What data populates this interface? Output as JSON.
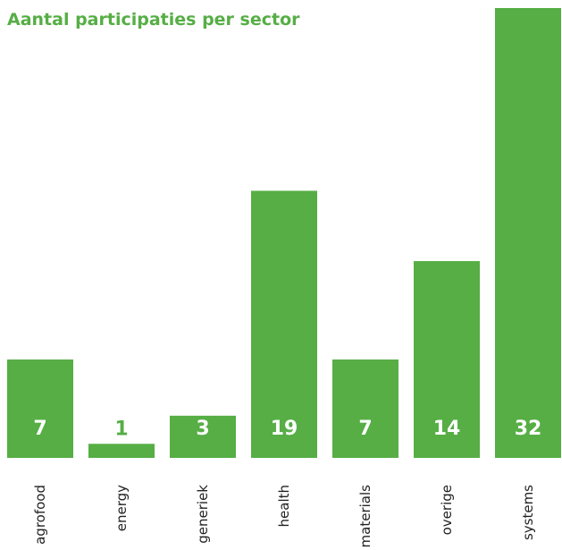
{
  "chart_data": {
    "type": "bar",
    "title": "Aantal participaties per sector",
    "categories": [
      "agrofood",
      "energy",
      "generiek",
      "health",
      "materials",
      "overige",
      "systems"
    ],
    "values": [
      7,
      1,
      3,
      19,
      7,
      14,
      32
    ],
    "color": "#56ae45"
  }
}
